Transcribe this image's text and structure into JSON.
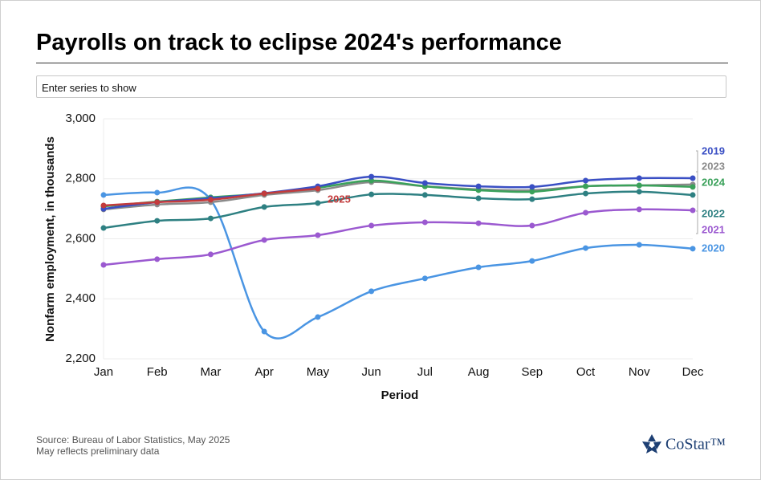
{
  "title": "Payrolls on track to eclipse 2024's performance",
  "search_placeholder": "Enter series to show",
  "chart_data": {
    "type": "line",
    "x_label": "Period",
    "y_label": "Nonfarm employment, in thousands",
    "categories": [
      "Jan",
      "Feb",
      "Mar",
      "Apr",
      "May",
      "Jun",
      "Jul",
      "Aug",
      "Sep",
      "Oct",
      "Nov",
      "Dec"
    ],
    "ylim": [
      2200,
      3000
    ],
    "yticks": [
      {
        "value": 2200,
        "label": "2,200"
      },
      {
        "value": 2400,
        "label": "2,400"
      },
      {
        "value": 2600,
        "label": "2,600"
      },
      {
        "value": 2800,
        "label": "2,800"
      },
      {
        "value": 3000,
        "label": "3,000"
      }
    ],
    "grid": true,
    "series": [
      {
        "name": "2020",
        "color": "#4a95e3",
        "values": [
          2746,
          2754,
          2730,
          2291,
          2339,
          2425,
          2468,
          2505,
          2526,
          2569,
          2580,
          2567
        ]
      },
      {
        "name": "2021",
        "color": "#9b59d0",
        "values": [
          2513,
          2532,
          2548,
          2596,
          2612,
          2644,
          2655,
          2652,
          2644,
          2687,
          2698,
          2695
        ]
      },
      {
        "name": "2022",
        "color": "#2e8082",
        "values": [
          2636,
          2660,
          2668,
          2706,
          2719,
          2748,
          2746,
          2735,
          2732,
          2751,
          2757,
          2746
        ]
      },
      {
        "name": "2023",
        "color": "#8a8a8a",
        "values": [
          2698,
          2714,
          2722,
          2746,
          2762,
          2789,
          2775,
          2765,
          2762,
          2775,
          2778,
          2781
        ]
      },
      {
        "name": "2024",
        "color": "#3aa15a",
        "values": [
          2708,
          2724,
          2738,
          2751,
          2770,
          2794,
          2775,
          2762,
          2757,
          2775,
          2778,
          2773
        ]
      },
      {
        "name": "2019",
        "color": "#3a4fc4",
        "values": [
          2700,
          2722,
          2735,
          2752,
          2775,
          2807,
          2786,
          2775,
          2773,
          2794,
          2802,
          2802
        ]
      },
      {
        "name": "2025",
        "color": "#c33b3c",
        "values": [
          2711,
          2722,
          2730,
          2751,
          2767,
          null,
          null,
          null,
          null,
          null,
          null,
          null
        ]
      }
    ]
  },
  "source": "Source: Bureau of Labor Statistics, May 2025",
  "note": "May reflects preliminary data",
  "logo": "CoStar™"
}
